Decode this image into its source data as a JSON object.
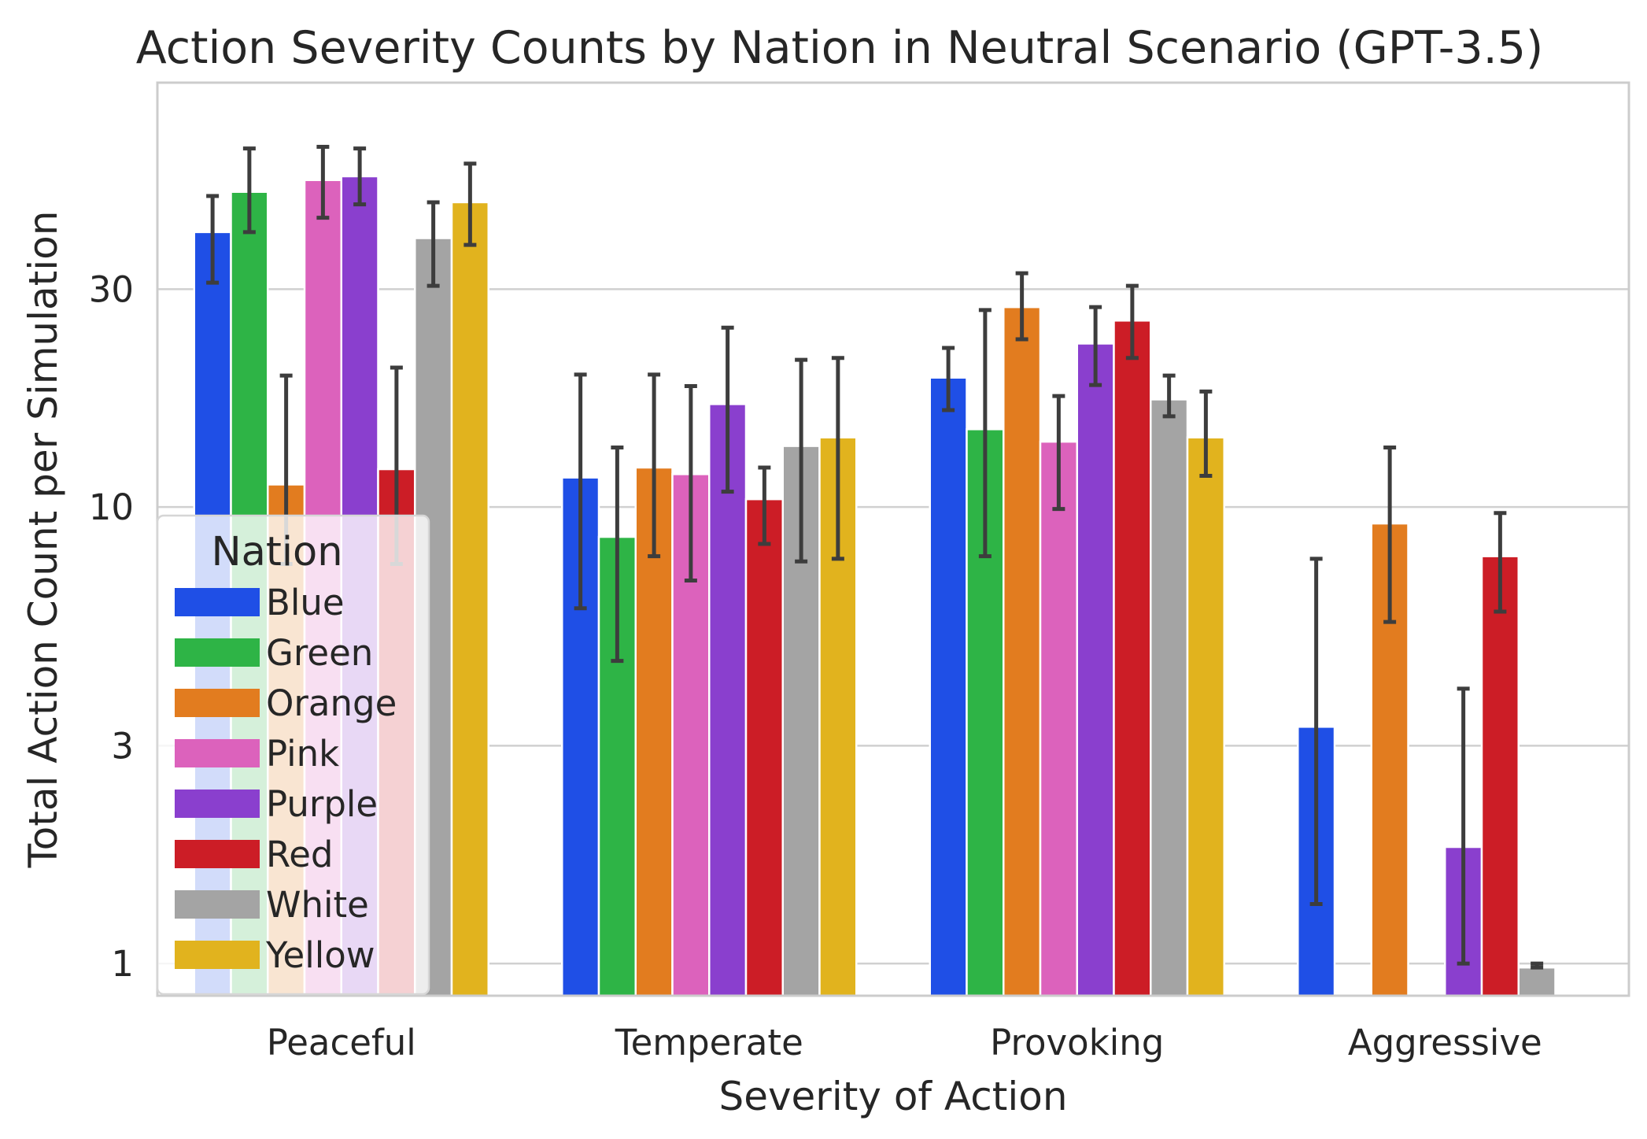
{
  "chart_data": {
    "type": "bar",
    "title": "Action Severity Counts by Nation in Neutral Scenario (GPT-3.5)",
    "xlabel": "Severity of Action",
    "ylabel": "Total Action Count per Simulation",
    "yscale": "log",
    "ylim": [
      0.85,
      85
    ],
    "yticks": [
      1,
      3,
      10,
      30
    ],
    "grid": "horizontal",
    "legend": {
      "title": "Nation",
      "placement": "lower-left"
    },
    "categories": [
      "Peaceful",
      "Temperate",
      "Provoking",
      "Aggressive"
    ],
    "series": [
      {
        "name": "Blue",
        "color": "#1f4fe6",
        "values": [
          40,
          11.6,
          19.2,
          3.3
        ],
        "err_low": [
          31,
          6,
          16.3,
          1.35
        ],
        "err_high": [
          48,
          19.5,
          22.3,
          7.7
        ]
      },
      {
        "name": "Green",
        "color": "#2eb446",
        "values": [
          49,
          8.6,
          14.8,
          null
        ],
        "err_low": [
          40,
          4.6,
          7.8,
          null
        ],
        "err_high": [
          61,
          13.5,
          27,
          null
        ]
      },
      {
        "name": "Orange",
        "color": "#e27c1f",
        "values": [
          11.2,
          12.2,
          27.4,
          9.2
        ],
        "err_low": [
          7.5,
          7.8,
          23.3,
          5.6
        ],
        "err_high": [
          19.4,
          19.5,
          32.5,
          13.5
        ]
      },
      {
        "name": "Pink",
        "color": "#dc62bc",
        "values": [
          52,
          11.8,
          13.9,
          null
        ],
        "err_low": [
          43,
          6.9,
          9.9,
          null
        ],
        "err_high": [
          61.5,
          18.4,
          17.5,
          null
        ]
      },
      {
        "name": "Purple",
        "color": "#8a3fce",
        "values": [
          53,
          16.8,
          22.8,
          1.8
        ],
        "err_low": [
          46,
          10.8,
          18.5,
          1.0
        ],
        "err_high": [
          61,
          24.7,
          27.4,
          4.0
        ]
      },
      {
        "name": "Red",
        "color": "#cc1d26",
        "values": [
          12.1,
          10.4,
          25.6,
          7.8
        ],
        "err_low": [
          7.5,
          8.3,
          21.2,
          5.9
        ],
        "err_high": [
          20.2,
          12.2,
          30.5,
          9.7
        ]
      },
      {
        "name": "White",
        "color": "#a4a4a4",
        "values": [
          38.8,
          13.6,
          17.2,
          0.98
        ],
        "err_low": [
          30.5,
          7.6,
          15.8,
          0.98
        ],
        "err_high": [
          46.5,
          21,
          19.4,
          1.0
        ]
      },
      {
        "name": "Yellow",
        "color": "#e1b31e",
        "values": [
          46.5,
          14.2,
          14.2,
          null
        ],
        "err_low": [
          37.5,
          7.7,
          11.7,
          null
        ],
        "err_high": [
          56.5,
          21.2,
          17.9,
          null
        ]
      }
    ]
  }
}
